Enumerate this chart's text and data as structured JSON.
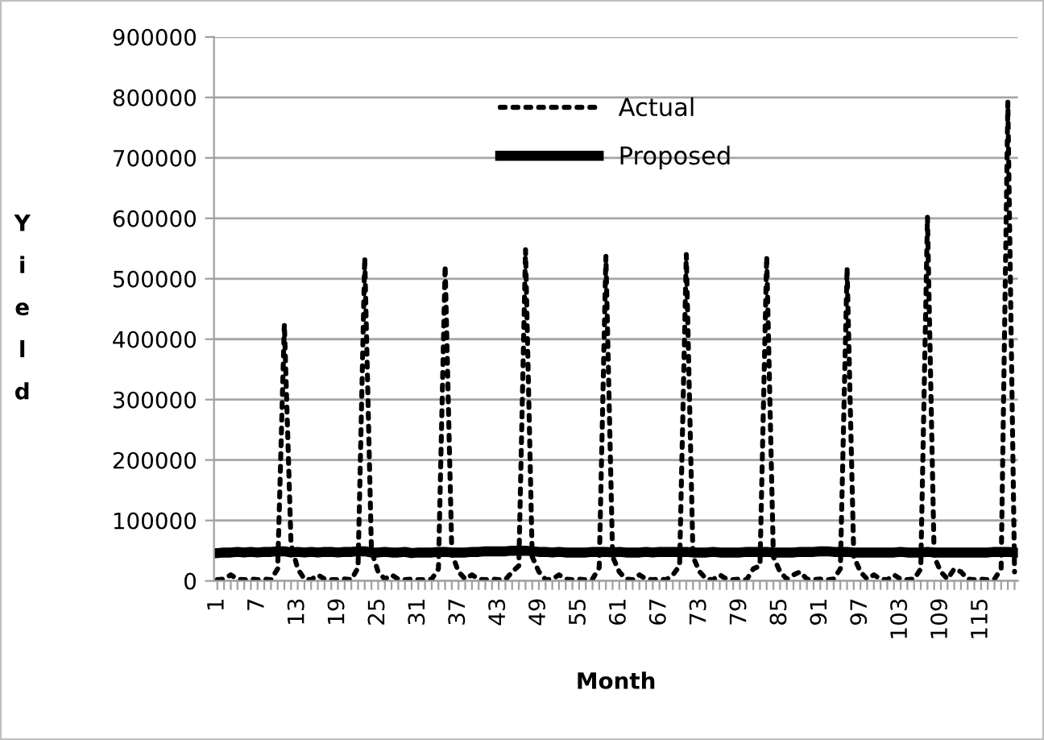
{
  "chart_data": {
    "type": "line",
    "xlabel": "Month",
    "ylabel": "Yield",
    "categories": [
      "1",
      null,
      null,
      null,
      null,
      null,
      "7",
      null,
      null,
      null,
      null,
      null,
      "13",
      null,
      null,
      null,
      null,
      null,
      "19",
      null,
      null,
      null,
      null,
      null,
      "25",
      null,
      null,
      null,
      null,
      null,
      "31",
      null,
      null,
      null,
      null,
      null,
      "37",
      null,
      null,
      null,
      null,
      null,
      "43",
      null,
      null,
      null,
      null,
      null,
      "49",
      null,
      null,
      null,
      null,
      null,
      "55",
      null,
      null,
      null,
      null,
      null,
      "61",
      null,
      null,
      null,
      null,
      null,
      "67",
      null,
      null,
      null,
      null,
      null,
      "73",
      null,
      null,
      null,
      null,
      null,
      "79",
      null,
      null,
      null,
      null,
      null,
      "85",
      null,
      null,
      null,
      null,
      null,
      "91",
      null,
      null,
      null,
      null,
      null,
      "97",
      null,
      null,
      null,
      null,
      null,
      "103",
      null,
      null,
      null,
      null,
      null,
      "109",
      null,
      null,
      null,
      null,
      null,
      "115",
      null,
      null,
      null,
      null,
      null
    ],
    "series": [
      {
        "name": "Actual",
        "color": "#000000",
        "line_style": "dotted",
        "values": [
          2000,
          3000,
          10000,
          3000,
          2000,
          3000,
          2000,
          3000,
          2000,
          20000,
          425000,
          60000,
          20000,
          3000,
          2000,
          10000,
          3000,
          2000,
          2000,
          3000,
          2000,
          22000,
          535000,
          50000,
          15000,
          3000,
          10000,
          3000,
          2000,
          3000,
          2000,
          2000,
          3000,
          20000,
          522000,
          45000,
          15000,
          3000,
          10000,
          3000,
          2000,
          3000,
          2000,
          2000,
          15000,
          25000,
          548000,
          40000,
          15000,
          2000,
          3000,
          10000,
          3000,
          2000,
          3000,
          2000,
          3000,
          22000,
          537000,
          40000,
          15000,
          3000,
          2000,
          10000,
          3000,
          2000,
          3000,
          2000,
          10000,
          25000,
          540000,
          40000,
          15000,
          3000,
          2000,
          10000,
          3000,
          2000,
          3000,
          2000,
          20000,
          25000,
          537000,
          40000,
          15000,
          3000,
          10000,
          15000,
          3000,
          2000,
          3000,
          2000,
          3000,
          20000,
          518000,
          40000,
          15000,
          3000,
          10000,
          3000,
          2000,
          10000,
          3000,
          2000,
          3000,
          20000,
          602000,
          40000,
          15000,
          3000,
          20000,
          15000,
          3000,
          2000,
          3000,
          2000,
          3000,
          20000,
          792000,
          15000
        ]
      },
      {
        "name": "Proposed",
        "color": "#000000",
        "line_style": "solid",
        "values": [
          46000,
          47000,
          47000,
          48000,
          47000,
          48000,
          47000,
          48000,
          48000,
          49000,
          49000,
          47000,
          48000,
          47000,
          48000,
          47000,
          48000,
          48000,
          47000,
          48000,
          48000,
          49000,
          49000,
          47000,
          47000,
          48000,
          47000,
          47000,
          48000,
          46000,
          47000,
          47000,
          47000,
          48000,
          48000,
          47000,
          47000,
          47000,
          48000,
          48000,
          49000,
          49000,
          49000,
          49000,
          50000,
          50000,
          50000,
          49000,
          48000,
          48000,
          47000,
          48000,
          47000,
          47000,
          47000,
          47000,
          48000,
          48000,
          48000,
          47000,
          48000,
          47000,
          47000,
          47000,
          48000,
          47000,
          48000,
          48000,
          48000,
          48000,
          48000,
          47000,
          47000,
          47000,
          48000,
          47000,
          47000,
          47000,
          47000,
          48000,
          48000,
          48000,
          48000,
          47000,
          47000,
          47000,
          47000,
          48000,
          48000,
          48000,
          49000,
          49000,
          48000,
          48000,
          48000,
          47000,
          47000,
          47000,
          47000,
          47000,
          47000,
          47000,
          48000,
          47000,
          47000,
          47000,
          48000,
          47000,
          47000,
          47000,
          47000,
          47000,
          47000,
          47000,
          47000,
          47000,
          48000,
          48000,
          48000,
          47000
        ]
      }
    ],
    "ylim": [
      0,
      900000
    ],
    "yticks": [
      0,
      100000,
      200000,
      300000,
      400000,
      500000,
      600000,
      700000,
      800000,
      900000
    ],
    "grid": "y",
    "legend": "top"
  }
}
